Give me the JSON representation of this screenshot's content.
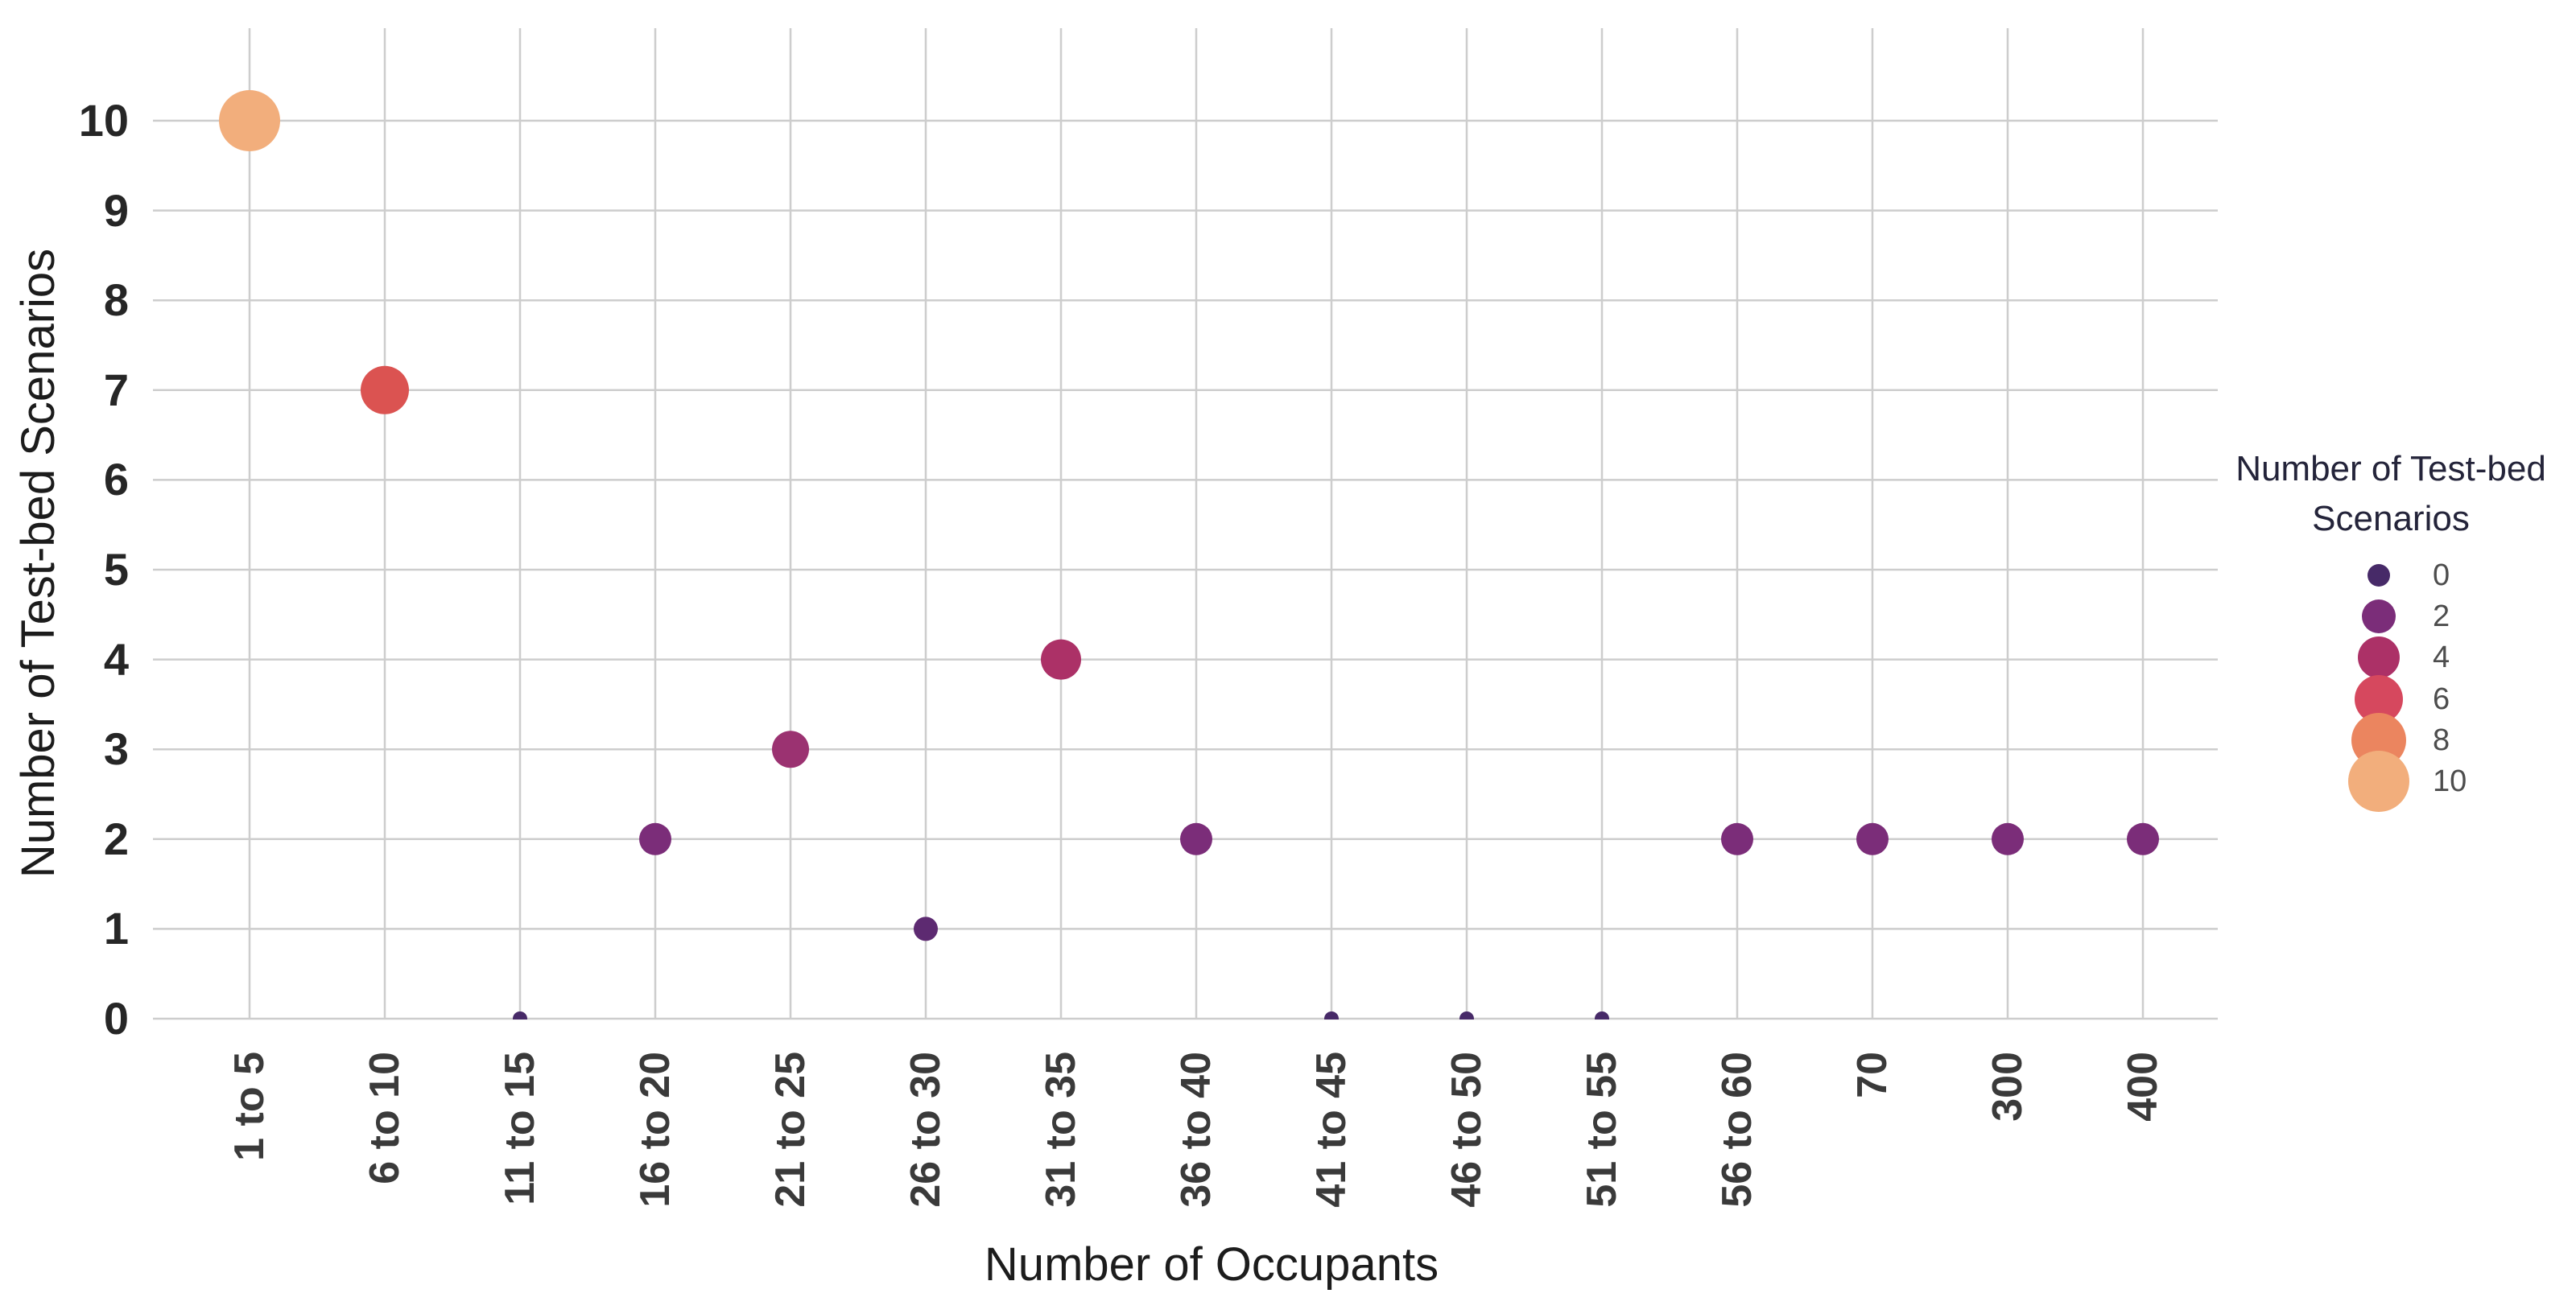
{
  "chart_data": {
    "type": "scatter",
    "mark": "bubble",
    "title": "",
    "xlabel": "Number of Occupants",
    "ylabel": "Number of Test-bed Scenarios",
    "categories": [
      "1 to 5",
      "6 to 10",
      "11 to 15",
      "16 to 20",
      "21 to 25",
      "26 to 30",
      "31 to 35",
      "36 to 40",
      "41 to 45",
      "46 to 50",
      "51 to 55",
      "56 to 60",
      "70",
      "300",
      "400"
    ],
    "values": [
      10,
      7,
      0,
      2,
      3,
      1,
      4,
      2,
      0,
      0,
      0,
      2,
      2,
      2,
      2
    ],
    "ylim": [
      0,
      10
    ],
    "yticks": [
      0,
      1,
      2,
      3,
      4,
      5,
      6,
      7,
      8,
      9,
      10
    ],
    "grid": true,
    "legend": {
      "position": "right",
      "title_line1": "Number of Test-bed",
      "title_line2": "Scenarios",
      "values": [
        0,
        2,
        4,
        6,
        8,
        10
      ],
      "labels": [
        "0",
        "2",
        "4",
        "6",
        "8",
        "10"
      ]
    },
    "color_by_value": {
      "0": "#472a68",
      "1": "#5d2a71",
      "2": "#7b2d79",
      "3": "#9b3271",
      "4": "#ac3167",
      "6": "#d6485e",
      "7": "#db5351",
      "8": "#eb855f",
      "10": "#f2ae7c"
    },
    "bubble_radius_by_value": {
      "0": 9,
      "1": 15,
      "2": 20,
      "3": 23,
      "4": 25,
      "7": 30,
      "10": 38
    },
    "legend_radius_by_value": {
      "0": 14,
      "2": 21,
      "4": 26,
      "6": 30,
      "8": 34,
      "10": 38
    },
    "colors": {
      "background": "#ffffff",
      "gridline": "#cdcdcd",
      "y_tick_label": "#262626",
      "x_tick_label": "#3a3a3a",
      "axis_title": "#1c1c1c",
      "legend_title": "#24243a",
      "legend_label": "#4d4d4d"
    }
  }
}
